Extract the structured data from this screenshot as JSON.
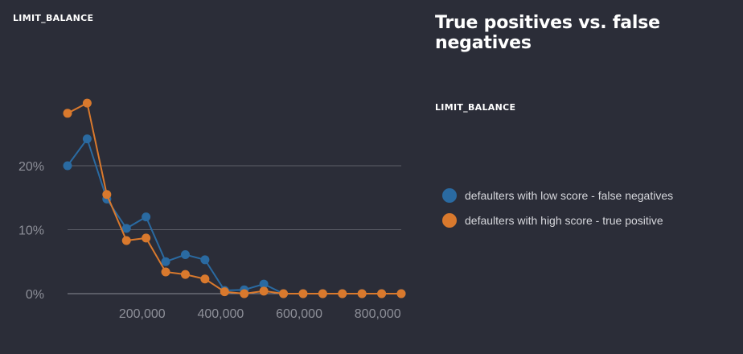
{
  "chart_label_top": "LIMIT_BALANCE",
  "title": "True positives vs. false negatives",
  "legend_title": "LIMIT_BALANCE",
  "colors": {
    "background": "#2b2d38",
    "blue": "#2a6aa1",
    "orange": "#d9792d",
    "grid": "#5c5e68"
  },
  "chart_data": {
    "type": "line",
    "xlabel": "",
    "ylabel": "",
    "x": [
      10000,
      60000,
      110000,
      160000,
      210000,
      260000,
      310000,
      360000,
      410000,
      460000,
      510000,
      560000,
      610000,
      660000,
      710000,
      760000,
      810000,
      860000
    ],
    "xlim": [
      10000,
      860000
    ],
    "ylim": [
      0,
      30
    ],
    "x_ticks": [
      200000,
      400000,
      600000,
      800000
    ],
    "x_tick_labels": [
      "200,000",
      "400,000",
      "600,000",
      "800,000"
    ],
    "y_ticks": [
      0,
      10,
      20
    ],
    "y_tick_labels": [
      "0%",
      "10%",
      "20%"
    ],
    "grid": "horizontal",
    "legend_position": "right",
    "series": [
      {
        "name": "defaulters with low score - false negatives",
        "color": "#2a6aa1",
        "values": [
          20.0,
          24.2,
          14.8,
          10.2,
          12.0,
          5.0,
          6.1,
          5.3,
          0.5,
          0.6,
          1.5,
          0.0,
          0.0,
          0.0,
          0.0,
          0.0,
          0.0,
          0.0
        ]
      },
      {
        "name": "defaulters with high score - true positive",
        "color": "#d9792d",
        "values": [
          28.2,
          29.8,
          15.5,
          8.3,
          8.7,
          3.4,
          3.0,
          2.3,
          0.3,
          0.0,
          0.4,
          0.0,
          0.0,
          0.0,
          0.0,
          0.0,
          0.0,
          0.0
        ]
      }
    ]
  }
}
